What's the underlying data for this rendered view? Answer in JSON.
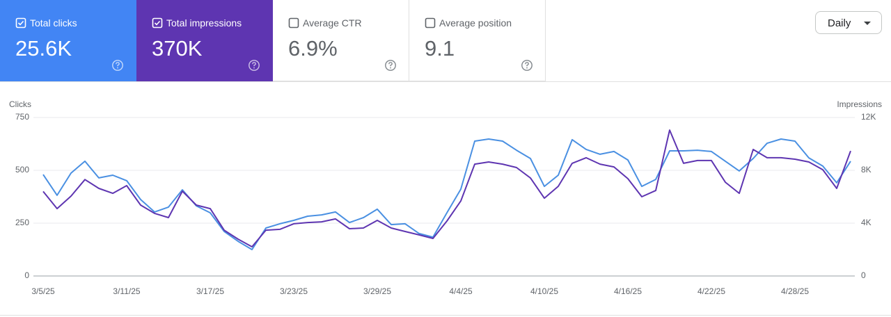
{
  "cards": [
    {
      "label": "Total clicks",
      "value": "25.6K",
      "checked": true,
      "color": "#4285f4"
    },
    {
      "label": "Total impressions",
      "value": "370K",
      "checked": true,
      "color": "#5e35b1"
    },
    {
      "label": "Average CTR",
      "value": "6.9%",
      "checked": false,
      "color": "#ffffff"
    },
    {
      "label": "Average position",
      "value": "9.1",
      "checked": false,
      "color": "#ffffff"
    }
  ],
  "selector": "Daily",
  "chart_data": {
    "type": "line",
    "ylabel": "Clicks",
    "y2label": "Impressions",
    "categories": [
      "3/5/25",
      null,
      null,
      null,
      null,
      null,
      "3/11/25",
      null,
      null,
      null,
      null,
      null,
      "3/17/25",
      null,
      null,
      null,
      null,
      null,
      "3/23/25",
      null,
      null,
      null,
      null,
      null,
      "3/29/25",
      null,
      null,
      null,
      null,
      null,
      "4/4/25",
      null,
      null,
      null,
      null,
      null,
      "4/10/25",
      null,
      null,
      null,
      null,
      null,
      "4/16/25",
      null,
      null,
      null,
      null,
      null,
      "4/22/25",
      null,
      null,
      null,
      null,
      null,
      "4/28/25",
      null,
      null,
      null,
      null
    ],
    "series": [
      {
        "color": "#4a90e2",
        "axis": "y",
        "values": [
          480,
          382,
          487,
          543,
          464,
          477,
          451,
          362,
          303,
          326,
          408,
          332,
          299,
          211,
          164,
          125,
          227,
          247,
          263,
          283,
          289,
          303,
          253,
          276,
          316,
          243,
          247,
          201,
          184,
          299,
          411,
          638,
          648,
          638,
          595,
          556,
          424,
          477,
          645,
          599,
          576,
          589,
          549,
          424,
          457,
          592,
          592,
          595,
          589,
          543,
          497,
          556,
          628,
          648,
          638,
          559,
          520,
          441,
          543
        ]
      },
      {
        "color": "#5e35b1",
        "axis": "y2",
        "values": [
          6400,
          5100,
          6050,
          7300,
          6630,
          6260,
          6840,
          5370,
          4740,
          4420,
          6420,
          5370,
          5100,
          3470,
          2790,
          2210,
          3470,
          3530,
          3950,
          4050,
          4100,
          4320,
          3580,
          3630,
          4210,
          3630,
          3370,
          3110,
          2840,
          4160,
          5680,
          8470,
          8630,
          8470,
          8210,
          7420,
          5890,
          6790,
          8530,
          8950,
          8470,
          8260,
          7370,
          6000,
          6470,
          11050,
          8530,
          8740,
          8740,
          7100,
          6260,
          9580,
          8950,
          8950,
          8840,
          8630,
          8050,
          6630,
          9470
        ]
      }
    ],
    "ylim": [
      0,
      750
    ],
    "yticks": [
      0,
      250,
      500,
      750
    ],
    "y2lim": [
      0,
      12000
    ],
    "y2ticks": [
      {
        "value": 0,
        "label": "0"
      },
      {
        "value": 4000,
        "label": "4K"
      },
      {
        "value": 8000,
        "label": "8K"
      },
      {
        "value": 12000,
        "label": "12K"
      }
    ],
    "grid": true
  }
}
